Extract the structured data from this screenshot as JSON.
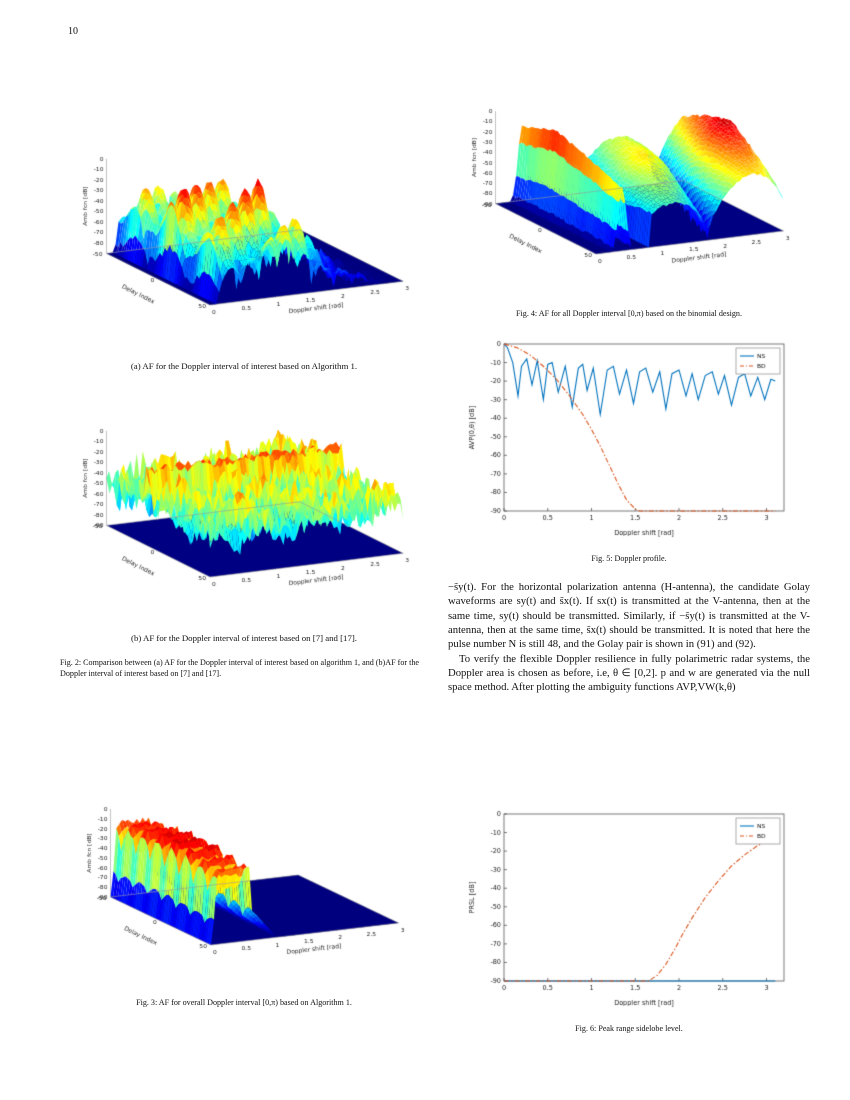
{
  "page": {
    "number": "10"
  },
  "figures": {
    "fig2a": {
      "caption": "(a) AF for the Doppler interval of interest based on Algorithm 1."
    },
    "fig2b": {
      "caption": "(b) AF for the Doppler interval of interest based on [7] and [17]."
    },
    "fig2": {
      "caption": "Fig. 2: Comparison between (a) AF for the Doppler interval of interest based on algorithm 1, and (b)AF for the Doppler interval of interest based on [7] and [17]."
    },
    "fig3": {
      "caption": "Fig. 3: AF for overall Doppler interval [0,π) based on Algorithm 1."
    },
    "fig4": {
      "caption": "Fig. 4: AF for all Doppler interval [0,π) based on the binomial design."
    },
    "fig5": {
      "caption": "Fig. 5: Doppler profile."
    },
    "fig6": {
      "caption": "Fig. 6: Peak range sidelobe level."
    }
  },
  "body": {
    "para1": "−s̃y(t). For the horizontal polarization antenna (H-antenna), the candidate Golay waveforms are sy(t) and s̃x(t). If sx(t) is transmitted at the V-antenna, then at the same time, sy(t) should be transmitted. Similarly, if −s̃y(t) is transmitted at the V-antenna, then at the same time, s̃x(t) should be transmitted. It is noted that here the pulse number N is still 48, and the Golay pair is shown in (91) and (92).",
    "para2": "To verify the flexible Doppler resilience in fully polarimetric radar systems, the Doppler area is chosen as before, i.e, θ ∈ [0,2]. p and w are generated via the null space method. After plotting the ambiguity functions AVP,VW(k,θ)"
  },
  "chart_data": [
    {
      "id": "fig2a",
      "type": "surface3d",
      "surface": "comb",
      "xlabel": "Doppler shift [rad]",
      "ylabel": "Delay Index",
      "zlabel": "Amb fcn [dB]",
      "x_range": [
        0,
        3
      ],
      "y_range": [
        -50,
        50
      ],
      "z_range": [
        -90,
        0
      ],
      "x_ticks": [
        0,
        0.5,
        1,
        1.5,
        2,
        2.5,
        3
      ],
      "y_ticks": [
        -50,
        0,
        50
      ],
      "z_ticks": [
        0,
        -10,
        -20,
        -30,
        -40,
        -50,
        -60,
        -70,
        -80
      ],
      "colormap": "jet",
      "description": "AF surface: tall spiky lobes over the Doppler interval of interest (about 0.1 to 1.6 rad), sloping down to the -90 dB floor toward 3 rad"
    },
    {
      "id": "fig2b",
      "type": "surface3d",
      "surface": "noise",
      "xlabel": "Doppler shift [rad]",
      "ylabel": "Delay Index",
      "zlabel": "Amb fcn [dB]",
      "x_range": [
        0,
        3
      ],
      "y_range": [
        -50,
        50
      ],
      "z_range": [
        -90,
        0
      ],
      "x_ticks": [
        0,
        0.5,
        1,
        1.5,
        2,
        2.5,
        3
      ],
      "y_ticks": [
        -50,
        0,
        50
      ],
      "z_ticks": [
        0,
        -10,
        -20,
        -30,
        -40,
        -50,
        -60,
        -70,
        -80,
        -90
      ],
      "colormap": "jet",
      "description": "AF surface: noisy pedestal around -40 to -60 dB over the whole domain with one tall narrow ridge near delay -11"
    },
    {
      "id": "fig3",
      "type": "surface3d",
      "surface": "wall",
      "xlabel": "Doppler shift [rad]",
      "ylabel": "Delay Index",
      "zlabel": "Amb fcn [dB]",
      "x_range": [
        0,
        3
      ],
      "y_range": [
        -50,
        50
      ],
      "z_range": [
        -90,
        0
      ],
      "x_ticks": [
        0,
        0.5,
        1,
        1.5,
        2,
        2.5,
        3
      ],
      "y_ticks": [
        -50,
        0,
        50
      ],
      "z_ticks": [
        0,
        -10,
        -20,
        -30,
        -40,
        -50,
        -60,
        -70,
        -80,
        -90
      ],
      "colormap": "jet",
      "description": "AF surface: single tall wall across all delays for Doppler about 0.1 to 0.6 rad, deep -90 dB floor elsewhere"
    },
    {
      "id": "fig4",
      "type": "surface3d",
      "surface": "fan",
      "xlabel": "Doppler shift [rad]",
      "ylabel": "Delay Index",
      "zlabel": "Amb fcn [dB]",
      "x_range": [
        0,
        3
      ],
      "y_range": [
        -50,
        50
      ],
      "z_range": [
        -90,
        0
      ],
      "x_ticks": [
        0,
        0.5,
        1,
        1.5,
        2,
        2.5,
        3
      ],
      "y_ticks": [
        -50,
        0,
        50
      ],
      "z_ticks": [
        0,
        -10,
        -20,
        -30,
        -40,
        -50,
        -60,
        -70,
        -80,
        -90
      ],
      "colormap": "jet",
      "description": "AF surface for binomial design: narrow tall column near 0.4 rad and broad smooth lobes growing toward 3 rad"
    },
    {
      "id": "fig5",
      "type": "line",
      "xlabel": "Doppler shift [rad]",
      "ylabel": "AVP(0,θ) [dB]",
      "xlim": [
        0,
        3.2
      ],
      "ylim": [
        -90,
        0
      ],
      "x_ticks": [
        0,
        0.5,
        1,
        1.5,
        2,
        2.5,
        3
      ],
      "y_ticks": [
        0,
        -10,
        -20,
        -30,
        -40,
        -50,
        -60,
        -70,
        -80,
        -90
      ],
      "legend_position": "top-right",
      "series": [
        {
          "name": "NS",
          "color": "#0072bd",
          "style": "solid",
          "x": [
            0,
            0.04,
            0.1,
            0.16,
            0.2,
            0.26,
            0.32,
            0.38,
            0.45,
            0.5,
            0.55,
            0.62,
            0.7,
            0.78,
            0.85,
            0.9,
            0.95,
            1.02,
            1.1,
            1.18,
            1.25,
            1.32,
            1.4,
            1.48,
            1.55,
            1.62,
            1.7,
            1.78,
            1.85,
            1.92,
            2.0,
            2.08,
            2.15,
            2.22,
            2.3,
            2.38,
            2.45,
            2.52,
            2.6,
            2.68,
            2.75,
            2.82,
            2.9,
            2.98,
            3.05,
            3.1
          ],
          "y": [
            0,
            -2,
            -10,
            -28,
            -12,
            -8,
            -22,
            -9,
            -30,
            -11,
            -10,
            -26,
            -12,
            -34,
            -13,
            -11,
            -25,
            -13,
            -38,
            -14,
            -12,
            -27,
            -14,
            -32,
            -15,
            -13,
            -26,
            -15,
            -35,
            -16,
            -14,
            -28,
            -16,
            -30,
            -17,
            -15,
            -27,
            -17,
            -33,
            -18,
            -16,
            -28,
            -18,
            -30,
            -19,
            -20
          ]
        },
        {
          "name": "BD",
          "color": "#d9531a",
          "style": "dashdot",
          "x": [
            0,
            0.15,
            0.3,
            0.45,
            0.6,
            0.75,
            0.9,
            1.0,
            1.1,
            1.2,
            1.3,
            1.4,
            1.5,
            1.55,
            3.1
          ],
          "y": [
            0,
            -2,
            -6,
            -12,
            -19,
            -28,
            -38,
            -46,
            -55,
            -65,
            -75,
            -84,
            -89,
            -90,
            -90
          ]
        }
      ]
    },
    {
      "id": "fig6",
      "type": "line",
      "xlabel": "Doppler shift [rad]",
      "ylabel": "PRSL [dB]",
      "xlim": [
        0,
        3.2
      ],
      "ylim": [
        -90,
        0
      ],
      "x_ticks": [
        0,
        0.5,
        1,
        1.5,
        2,
        2.5,
        3
      ],
      "y_ticks": [
        0,
        -10,
        -20,
        -30,
        -40,
        -50,
        -60,
        -70,
        -80,
        -90
      ],
      "legend_position": "top-right",
      "series": [
        {
          "name": "NS",
          "color": "#0072bd",
          "style": "solid",
          "x": [
            0,
            3.1
          ],
          "y": [
            -90,
            -90
          ]
        },
        {
          "name": "BD",
          "color": "#d9531a",
          "style": "dashdot",
          "x": [
            0,
            1.65,
            1.75,
            1.85,
            1.95,
            2.05,
            2.15,
            2.3,
            2.45,
            2.6,
            2.75,
            2.9,
            3.05,
            3.1
          ],
          "y": [
            -90,
            -90,
            -87,
            -81,
            -73,
            -64,
            -56,
            -45,
            -36,
            -28,
            -22,
            -17,
            -14,
            -13
          ]
        }
      ]
    }
  ]
}
